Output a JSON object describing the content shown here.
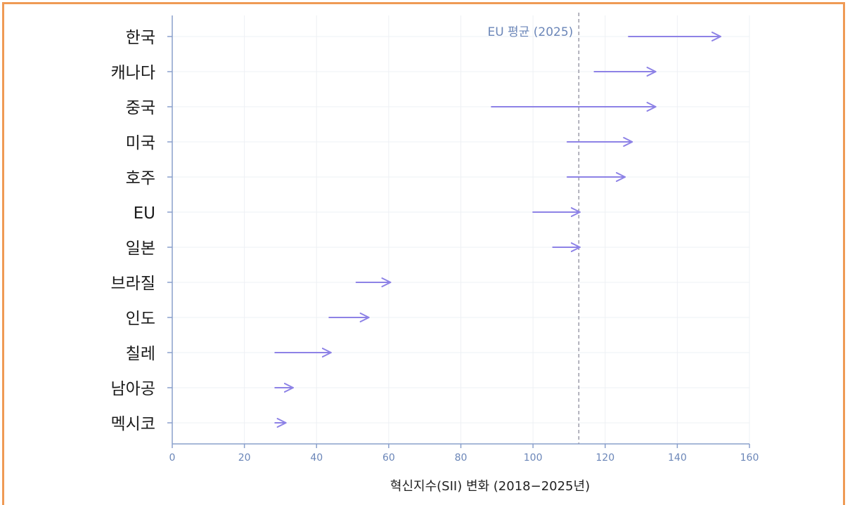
{
  "colors": {
    "arrow": "#8d82e6",
    "axis": "#8aa0cc",
    "grid": "#eef0f4",
    "ref_line": "#9a9aa8",
    "frame": "#ef9a55"
  },
  "chart_data": {
    "type": "arrow-dumbbell",
    "title": "",
    "xlabel": "혁신지수(SII) 변화 (2018−2025년)",
    "ylabel": "",
    "xlim": [
      0,
      160
    ],
    "xticks": [
      "0",
      "20",
      "40",
      "60",
      "80",
      "100",
      "120",
      "140",
      "160"
    ],
    "grid": true,
    "categories": [
      "한국",
      "캐나다",
      "중국",
      "미국",
      "호주",
      "EU",
      "일본",
      "브라질",
      "인도",
      "칠레",
      "남아공",
      "멕시코"
    ],
    "series": [
      {
        "name": "2018",
        "values": [
          126.5,
          117,
          88.5,
          109.5,
          109.5,
          100,
          105.5,
          51,
          43.5,
          28.5,
          28.5,
          28.5
        ]
      },
      {
        "name": "2025",
        "values": [
          152,
          134,
          134,
          127.5,
          125.5,
          113,
          113,
          60.5,
          54.5,
          44,
          33.5,
          31.5
        ]
      }
    ],
    "reference_line": {
      "value": 112.7,
      "label": "EU 평균 (2025)"
    }
  }
}
